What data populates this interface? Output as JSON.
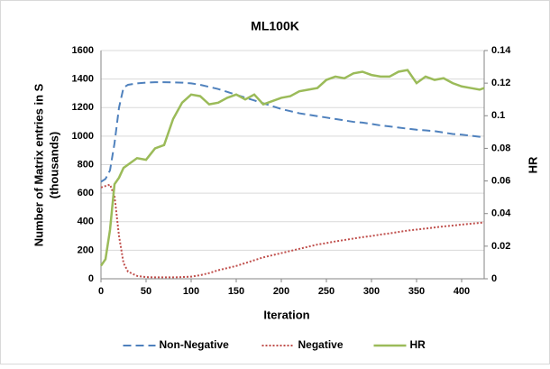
{
  "chart_data": {
    "type": "line",
    "title": "ML100K",
    "x_label": "Iteration",
    "y_label": [
      "Number of Matrix entries in S",
      "(thousands)"
    ],
    "y2_label": "HR",
    "x": [
      0,
      5,
      10,
      15,
      20,
      25,
      30,
      40,
      50,
      60,
      70,
      80,
      90,
      100,
      110,
      120,
      130,
      140,
      150,
      160,
      170,
      180,
      190,
      200,
      210,
      220,
      230,
      240,
      250,
      260,
      270,
      280,
      290,
      300,
      310,
      320,
      330,
      340,
      350,
      360,
      370,
      380,
      390,
      400,
      410,
      420,
      425
    ],
    "series": [
      {
        "name": "Non-Negative",
        "color": "#4f81bd",
        "line_style": "dashed",
        "values": [
          680,
          700,
          760,
          950,
          1200,
          1340,
          1360,
          1370,
          1375,
          1378,
          1378,
          1377,
          1375,
          1370,
          1360,
          1345,
          1330,
          1310,
          1290,
          1270,
          1250,
          1230,
          1210,
          1190,
          1175,
          1160,
          1150,
          1140,
          1130,
          1120,
          1110,
          1100,
          1095,
          1085,
          1075,
          1068,
          1060,
          1052,
          1045,
          1040,
          1035,
          1025,
          1015,
          1010,
          1003,
          995,
          990
        ]
      },
      {
        "name": "Negative",
        "color": "#c0504d",
        "line_style": "dotted",
        "values": [
          640,
          650,
          660,
          580,
          300,
          110,
          50,
          20,
          12,
          10,
          10,
          10,
          12,
          15,
          25,
          40,
          60,
          75,
          90,
          110,
          130,
          150,
          165,
          180,
          195,
          210,
          225,
          240,
          250,
          262,
          272,
          282,
          292,
          300,
          310,
          318,
          328,
          338,
          345,
          352,
          360,
          367,
          373,
          380,
          386,
          392,
          395
        ]
      },
      {
        "name": "HR",
        "color": "#9bbb59",
        "line_style": "solid",
        "axis": "y2",
        "values": [
          0.008,
          0.012,
          0.03,
          0.058,
          0.062,
          0.068,
          0.07,
          0.074,
          0.073,
          0.08,
          0.082,
          0.098,
          0.108,
          0.113,
          0.112,
          0.107,
          0.108,
          0.111,
          0.113,
          0.11,
          0.113,
          0.107,
          0.109,
          0.111,
          0.112,
          0.115,
          0.116,
          0.117,
          0.122,
          0.124,
          0.123,
          0.126,
          0.127,
          0.125,
          0.124,
          0.124,
          0.127,
          0.128,
          0.12,
          0.124,
          0.122,
          0.123,
          0.12,
          0.118,
          0.117,
          0.116,
          0.117
        ]
      }
    ],
    "xlim": [
      0,
      425
    ],
    "xticks": [
      0,
      50,
      100,
      150,
      200,
      250,
      300,
      350,
      400
    ],
    "ylim": [
      0,
      1600
    ],
    "yticks": [
      0,
      200,
      400,
      600,
      800,
      1000,
      1200,
      1400,
      1600
    ],
    "y2lim": [
      0,
      0.14
    ],
    "y2ticks": [
      0,
      0.02,
      0.04,
      0.06,
      0.08,
      0.1,
      0.12,
      0.14
    ],
    "grid": true,
    "legend": "bottom"
  }
}
